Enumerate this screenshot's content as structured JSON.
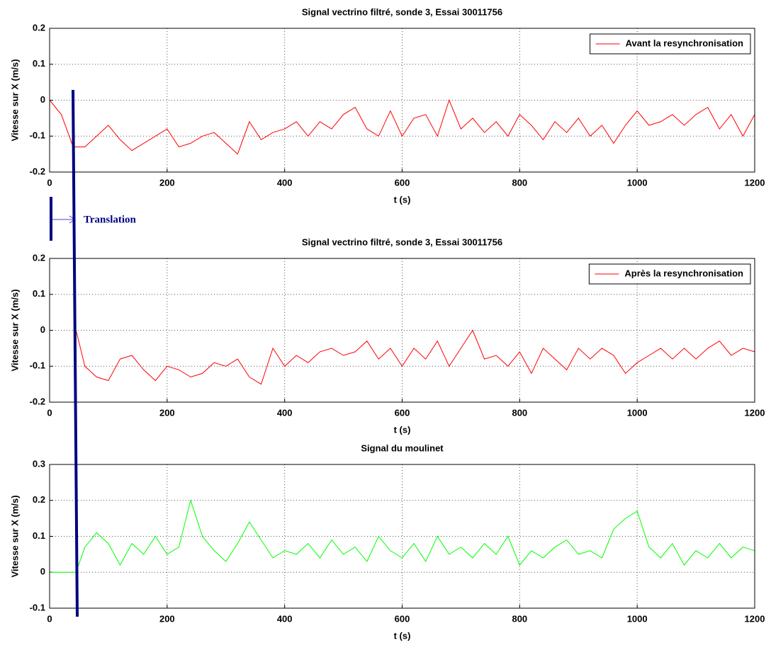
{
  "chart_data": [
    {
      "type": "line",
      "title": "Signal vectrino filtré, sonde 3, Essai 30011756",
      "xlabel": "t (s)",
      "ylabel": "Vitesse sur X (m/s)",
      "annotation": "Translation",
      "x": [
        0,
        20,
        40,
        60,
        80,
        100,
        120,
        140,
        160,
        180,
        200,
        220,
        240,
        260,
        280,
        300,
        320,
        340,
        360,
        380,
        400,
        420,
        440,
        460,
        480,
        500,
        520,
        540,
        560,
        580,
        600,
        620,
        640,
        660,
        680,
        700,
        720,
        740,
        760,
        780,
        800,
        820,
        840,
        860,
        880,
        900,
        920,
        940,
        960,
        980,
        1000,
        1020,
        1040,
        1060,
        1080,
        1100,
        1120,
        1140,
        1160,
        1180,
        1200
      ],
      "series": [
        {
          "name": "Avant la resynchronisation",
          "color": "#ff0000",
          "values": [
            0,
            -0.04,
            -0.13,
            -0.13,
            -0.1,
            -0.07,
            -0.11,
            -0.14,
            -0.12,
            -0.1,
            -0.08,
            -0.13,
            -0.12,
            -0.1,
            -0.09,
            -0.12,
            -0.15,
            -0.06,
            -0.11,
            -0.09,
            -0.08,
            -0.06,
            -0.1,
            -0.06,
            -0.08,
            -0.04,
            -0.02,
            -0.08,
            -0.1,
            -0.03,
            -0.1,
            -0.05,
            -0.04,
            -0.1,
            0.0,
            -0.08,
            -0.05,
            -0.09,
            -0.06,
            -0.1,
            -0.04,
            -0.07,
            -0.11,
            -0.06,
            -0.09,
            -0.05,
            -0.1,
            -0.07,
            -0.12,
            -0.07,
            -0.03,
            -0.07,
            -0.06,
            -0.04,
            -0.07,
            -0.04,
            -0.02,
            -0.08,
            -0.04,
            -0.1,
            -0.04
          ]
        }
      ],
      "xlim": [
        0,
        1200
      ],
      "xticks": [
        0,
        200,
        400,
        600,
        800,
        1000,
        1200
      ],
      "ylim": [
        -0.2,
        0.2
      ],
      "yticks": [
        -0.2,
        -0.1,
        0,
        0.1,
        0.2
      ],
      "grid": true,
      "legend": "upper right"
    },
    {
      "type": "line",
      "title": "Signal vectrino filtré, sonde 3, Essai 30011756",
      "xlabel": "t (s)",
      "ylabel": "Vitesse sur X (m/s)",
      "x": [
        45,
        60,
        80,
        100,
        120,
        140,
        160,
        180,
        200,
        220,
        240,
        260,
        280,
        300,
        320,
        340,
        360,
        380,
        400,
        420,
        440,
        460,
        480,
        500,
        520,
        540,
        560,
        580,
        600,
        620,
        640,
        660,
        680,
        700,
        720,
        740,
        760,
        780,
        800,
        820,
        840,
        860,
        880,
        900,
        920,
        940,
        960,
        980,
        1000,
        1020,
        1040,
        1060,
        1080,
        1100,
        1120,
        1140,
        1160,
        1180,
        1200
      ],
      "series": [
        {
          "name": "Après la resynchronisation",
          "color": "#ff0000",
          "values": [
            0.0,
            -0.1,
            -0.13,
            -0.14,
            -0.08,
            -0.07,
            -0.11,
            -0.14,
            -0.1,
            -0.11,
            -0.13,
            -0.12,
            -0.09,
            -0.1,
            -0.08,
            -0.13,
            -0.15,
            -0.05,
            -0.1,
            -0.07,
            -0.09,
            -0.06,
            -0.05,
            -0.07,
            -0.06,
            -0.03,
            -0.08,
            -0.05,
            -0.1,
            -0.05,
            -0.08,
            -0.03,
            -0.1,
            -0.05,
            0.0,
            -0.08,
            -0.07,
            -0.1,
            -0.06,
            -0.12,
            -0.05,
            -0.08,
            -0.11,
            -0.05,
            -0.08,
            -0.05,
            -0.07,
            -0.12,
            -0.09,
            -0.07,
            -0.05,
            -0.08,
            -0.05,
            -0.08,
            -0.05,
            -0.03,
            -0.07,
            -0.05,
            -0.06
          ]
        }
      ],
      "xlim": [
        0,
        1200
      ],
      "xticks": [
        0,
        200,
        400,
        600,
        800,
        1000,
        1200
      ],
      "ylim": [
        -0.2,
        0.2
      ],
      "yticks": [
        -0.2,
        -0.1,
        0,
        0.1,
        0.2
      ],
      "grid": true,
      "legend": "upper right"
    },
    {
      "type": "line",
      "title": "Signal du moulinet",
      "xlabel": "t (s)",
      "ylabel": "Vitesse sur X (m/s)",
      "x": [
        0,
        20,
        40,
        45,
        60,
        80,
        100,
        120,
        140,
        160,
        180,
        200,
        220,
        240,
        260,
        280,
        300,
        320,
        340,
        360,
        380,
        400,
        420,
        440,
        460,
        480,
        500,
        520,
        540,
        560,
        580,
        600,
        620,
        640,
        660,
        680,
        700,
        720,
        740,
        760,
        780,
        800,
        820,
        840,
        860,
        880,
        900,
        920,
        940,
        960,
        980,
        1000,
        1020,
        1040,
        1060,
        1080,
        1100,
        1120,
        1140,
        1160,
        1180,
        1200
      ],
      "series": [
        {
          "color": "#00ff00",
          "values": [
            0,
            0,
            0,
            0,
            0.07,
            0.11,
            0.08,
            0.02,
            0.08,
            0.05,
            0.1,
            0.05,
            0.07,
            0.2,
            0.1,
            0.06,
            0.03,
            0.08,
            0.14,
            0.09,
            0.04,
            0.06,
            0.05,
            0.08,
            0.04,
            0.09,
            0.05,
            0.07,
            0.03,
            0.1,
            0.06,
            0.04,
            0.08,
            0.03,
            0.1,
            0.05,
            0.07,
            0.04,
            0.08,
            0.05,
            0.1,
            0.02,
            0.06,
            0.04,
            0.07,
            0.09,
            0.05,
            0.06,
            0.04,
            0.12,
            0.15,
            0.17,
            0.07,
            0.04,
            0.08,
            0.02,
            0.06,
            0.04,
            0.08,
            0.04,
            0.07,
            0.06
          ]
        }
      ],
      "xlim": [
        0,
        1200
      ],
      "xticks": [
        0,
        200,
        400,
        600,
        800,
        1000,
        1200
      ],
      "ylim": [
        -0.1,
        0.3
      ],
      "yticks": [
        -0.1,
        0,
        0.1,
        0.2,
        0.3
      ],
      "grid": true
    }
  ]
}
